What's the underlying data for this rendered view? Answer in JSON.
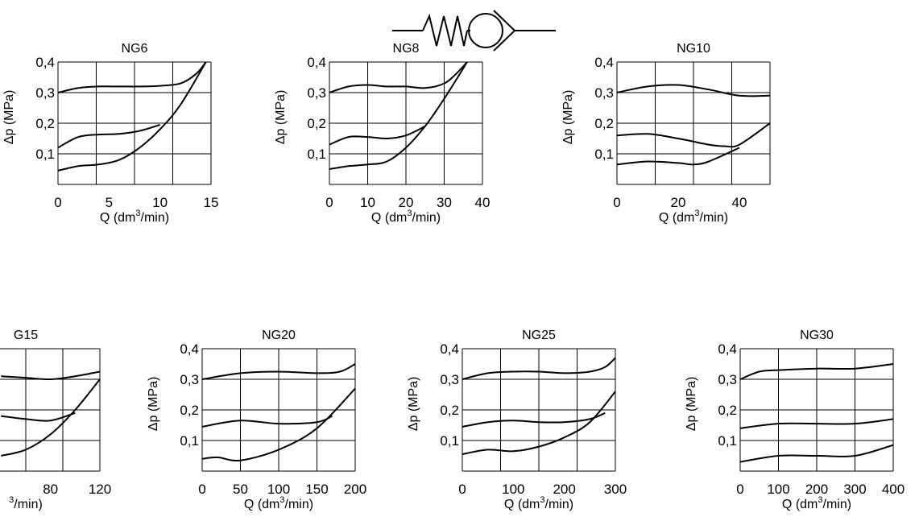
{
  "symbol": {
    "name": "check-valve-symbol"
  },
  "chart_data": [
    {
      "type": "line",
      "title": "NG6",
      "xlabel": "Q (dm³/min)",
      "ylabel": "Δp (MPa)",
      "xlim": [
        0,
        15
      ],
      "ylim": [
        0,
        0.4
      ],
      "x_ticks": [
        "0",
        "5",
        "10",
        "15"
      ],
      "y_ticks": [
        "0,1",
        "0,2",
        "0,3",
        "0,4"
      ],
      "grid": true,
      "series": [
        {
          "x": [
            0,
            2,
            4,
            6,
            8,
            10,
            12,
            13.5,
            14.5
          ],
          "y": [
            0.3,
            0.315,
            0.32,
            0.32,
            0.32,
            0.322,
            0.33,
            0.36,
            0.4
          ]
        },
        {
          "x": [
            0,
            2,
            4,
            6,
            8,
            10
          ],
          "y": [
            0.12,
            0.155,
            0.163,
            0.165,
            0.175,
            0.195
          ]
        },
        {
          "x": [
            0,
            2,
            4,
            6,
            8,
            10,
            12,
            14.5
          ],
          "y": [
            0.045,
            0.06,
            0.065,
            0.08,
            0.12,
            0.18,
            0.26,
            0.4
          ]
        }
      ]
    },
    {
      "type": "line",
      "title": "NG8",
      "xlabel": "Q (dm³/min)",
      "ylabel": "Δp (MPa)",
      "xlim": [
        0,
        40
      ],
      "ylim": [
        0,
        0.4
      ],
      "x_ticks": [
        "0",
        "10",
        "20",
        "30",
        "40"
      ],
      "y_ticks": [
        "0,1",
        "0,2",
        "0,3",
        "0,4"
      ],
      "grid": true,
      "series": [
        {
          "x": [
            0,
            5,
            10,
            15,
            20,
            25,
            30,
            33,
            36
          ],
          "y": [
            0.3,
            0.32,
            0.325,
            0.32,
            0.32,
            0.315,
            0.33,
            0.36,
            0.4
          ]
        },
        {
          "x": [
            0,
            5,
            10,
            15,
            20,
            25
          ],
          "y": [
            0.13,
            0.155,
            0.155,
            0.15,
            0.16,
            0.19
          ]
        },
        {
          "x": [
            0,
            5,
            10,
            15,
            20,
            25,
            30,
            36
          ],
          "y": [
            0.05,
            0.06,
            0.065,
            0.075,
            0.12,
            0.19,
            0.28,
            0.4
          ]
        }
      ]
    },
    {
      "type": "line",
      "title": "NG10",
      "xlabel": "Q (dm³/min)",
      "ylabel": "Δp (MPa)",
      "xlim": [
        0,
        50
      ],
      "ylim": [
        0,
        0.4
      ],
      "x_ticks": [
        "0",
        "20",
        "40"
      ],
      "y_ticks": [
        "0,1",
        "0,2",
        "0,3",
        "0,4"
      ],
      "grid": true,
      "series": [
        {
          "x": [
            0,
            10,
            20,
            30,
            40,
            50
          ],
          "y": [
            0.3,
            0.32,
            0.325,
            0.31,
            0.29,
            0.29
          ]
        },
        {
          "x": [
            0,
            10,
            20,
            30,
            35,
            40,
            50
          ],
          "y": [
            0.16,
            0.165,
            0.15,
            0.13,
            0.125,
            0.13,
            0.2
          ]
        },
        {
          "x": [
            0,
            10,
            20,
            25,
            30,
            40
          ],
          "y": [
            0.065,
            0.075,
            0.07,
            0.065,
            0.075,
            0.12
          ]
        }
      ]
    },
    {
      "type": "line",
      "title": "G15",
      "xlabel": "³/min)",
      "ylabel": "",
      "xlim": [
        0,
        120
      ],
      "ylim": [
        0,
        0.4
      ],
      "x_ticks": [
        "80",
        "120"
      ],
      "y_ticks": [],
      "grid": true,
      "series": [
        {
          "x": [
            40,
            60,
            80,
            100,
            120
          ],
          "y": [
            0.31,
            0.305,
            0.3,
            0.31,
            0.325
          ]
        },
        {
          "x": [
            40,
            60,
            80,
            100
          ],
          "y": [
            0.18,
            0.17,
            0.165,
            0.19
          ]
        },
        {
          "x": [
            40,
            60,
            80,
            100,
            120
          ],
          "y": [
            0.05,
            0.07,
            0.12,
            0.2,
            0.3
          ]
        }
      ]
    },
    {
      "type": "line",
      "title": "NG20",
      "xlabel": "Q (dm³/min)",
      "ylabel": "Δp (MPa)",
      "xlim": [
        0,
        200
      ],
      "ylim": [
        0,
        0.4
      ],
      "x_ticks": [
        "0",
        "50",
        "100",
        "150",
        "200"
      ],
      "y_ticks": [
        "0,1",
        "0,2",
        "0,3",
        "0,4"
      ],
      "grid": true,
      "series": [
        {
          "x": [
            0,
            50,
            100,
            150,
            180,
            200
          ],
          "y": [
            0.3,
            0.32,
            0.325,
            0.32,
            0.325,
            0.35
          ]
        },
        {
          "x": [
            0,
            50,
            100,
            150,
            170
          ],
          "y": [
            0.145,
            0.165,
            0.155,
            0.16,
            0.18
          ]
        },
        {
          "x": [
            0,
            20,
            50,
            100,
            150,
            200
          ],
          "y": [
            0.04,
            0.045,
            0.035,
            0.07,
            0.14,
            0.27
          ]
        }
      ]
    },
    {
      "type": "line",
      "title": "NG25",
      "xlabel": "Q (dm³/min)",
      "ylabel": "Δp (MPa)",
      "xlim": [
        0,
        300
      ],
      "ylim": [
        0,
        0.4
      ],
      "x_ticks": [
        "0",
        "100",
        "200",
        "300"
      ],
      "y_ticks": [
        "0,1",
        "0,2",
        "0,3",
        "0,4"
      ],
      "grid": true,
      "series": [
        {
          "x": [
            0,
            50,
            100,
            150,
            200,
            250,
            280,
            300
          ],
          "y": [
            0.3,
            0.32,
            0.325,
            0.325,
            0.32,
            0.325,
            0.34,
            0.37
          ]
        },
        {
          "x": [
            0,
            50,
            100,
            150,
            200,
            250,
            280
          ],
          "y": [
            0.145,
            0.16,
            0.165,
            0.16,
            0.16,
            0.17,
            0.19
          ]
        },
        {
          "x": [
            0,
            50,
            100,
            150,
            200,
            250,
            300
          ],
          "y": [
            0.055,
            0.07,
            0.065,
            0.08,
            0.11,
            0.16,
            0.26
          ]
        }
      ]
    },
    {
      "type": "line",
      "title": "NG30",
      "xlabel": "Q (dm³/min)",
      "ylabel": "Δp (MPa)",
      "xlim": [
        0,
        400
      ],
      "ylim": [
        0,
        0.4
      ],
      "x_ticks": [
        "0",
        "100",
        "200",
        "300",
        "400"
      ],
      "y_ticks": [
        "0,1",
        "0,2",
        "0,3",
        "0,4"
      ],
      "grid": true,
      "series": [
        {
          "x": [
            0,
            50,
            100,
            200,
            300,
            400
          ],
          "y": [
            0.3,
            0.325,
            0.33,
            0.335,
            0.335,
            0.35
          ]
        },
        {
          "x": [
            0,
            100,
            200,
            300,
            400
          ],
          "y": [
            0.14,
            0.155,
            0.155,
            0.155,
            0.17
          ]
        },
        {
          "x": [
            0,
            100,
            200,
            300,
            400
          ],
          "y": [
            0.03,
            0.05,
            0.05,
            0.05,
            0.085
          ]
        }
      ]
    }
  ]
}
